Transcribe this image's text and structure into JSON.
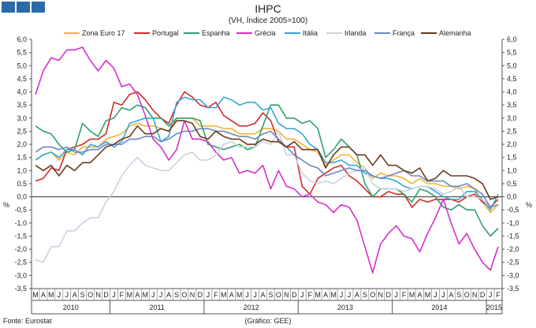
{
  "chart_data": {
    "type": "line",
    "title": "IHPC",
    "subtitle": "(VH, Índice 2005=100)",
    "ylabel_left": "%",
    "ylabel_right": "%",
    "ylim": [
      -3.5,
      6.0
    ],
    "yticks": [
      "6,0",
      "5,5",
      "5,0",
      "4,5",
      "4,0",
      "3,5",
      "3,0",
      "2,5",
      "2,0",
      "1,5",
      "1,0",
      "0,5",
      "0,0",
      "-0,5",
      "-1,0",
      "-1,5",
      "-2,0",
      "-2,5",
      "-3,0",
      "-3,5"
    ],
    "grid": false,
    "legend_position": "top",
    "months": [
      "M",
      "A",
      "M",
      "J",
      "J",
      "A",
      "S",
      "O",
      "N",
      "D",
      "J",
      "F",
      "M",
      "A",
      "M",
      "J",
      "J",
      "A",
      "S",
      "O",
      "N",
      "D",
      "J",
      "F",
      "M",
      "A",
      "M",
      "J",
      "J",
      "A",
      "S",
      "O",
      "N",
      "D",
      "J",
      "F",
      "M",
      "A",
      "M",
      "J",
      "J",
      "A",
      "S",
      "O",
      "N",
      "D",
      "J",
      "F",
      "M",
      "A",
      "M",
      "J",
      "J",
      "A",
      "S",
      "O",
      "N",
      "D",
      "J",
      "F"
    ],
    "years": [
      {
        "label": "2010",
        "start": 0,
        "end": 10
      },
      {
        "label": "2011",
        "start": 10,
        "end": 22
      },
      {
        "label": "2012",
        "start": 22,
        "end": 34
      },
      {
        "label": "2013",
        "start": 34,
        "end": 46
      },
      {
        "label": "2014",
        "start": 46,
        "end": 58
      },
      {
        "label": "2015",
        "start": 58,
        "end": 60
      }
    ],
    "series": [
      {
        "name": "Zona Euro 17",
        "color": "#f5b335",
        "values": [
          1.4,
          1.6,
          1.7,
          1.4,
          1.7,
          1.6,
          1.9,
          1.9,
          1.9,
          2.2,
          2.3,
          2.4,
          2.7,
          2.8,
          2.7,
          2.7,
          2.6,
          2.5,
          3.0,
          3.0,
          3.0,
          2.7,
          2.7,
          2.7,
          2.6,
          2.6,
          2.4,
          2.4,
          2.4,
          2.6,
          2.6,
          2.5,
          2.2,
          2.2,
          2.0,
          1.8,
          1.7,
          1.2,
          1.4,
          1.6,
          1.6,
          1.3,
          1.1,
          0.7,
          0.9,
          0.8,
          0.8,
          0.7,
          0.5,
          0.7,
          0.5,
          0.5,
          0.4,
          0.4,
          0.3,
          0.4,
          0.3,
          -0.2,
          -0.6,
          -0.3
        ]
      },
      {
        "name": "Portugal",
        "color": "#d42a2a",
        "values": [
          0.6,
          0.7,
          1.1,
          1.0,
          1.8,
          1.9,
          2.0,
          2.2,
          2.2,
          2.4,
          3.6,
          3.5,
          3.9,
          4.0,
          3.7,
          3.3,
          3.0,
          2.8,
          3.5,
          4.0,
          3.8,
          3.5,
          3.4,
          3.6,
          3.1,
          2.9,
          2.7,
          2.7,
          2.8,
          3.2,
          2.9,
          2.1,
          1.9,
          1.9,
          0.4,
          0.1,
          0.7,
          0.9,
          1.1,
          1.2,
          0.8,
          0.6,
          0.3,
          0.0,
          0.0,
          0.2,
          0.1,
          0.1,
          -0.4,
          -0.1,
          -0.2,
          -0.1,
          -0.1,
          -0.1,
          -0.2,
          0.0,
          0.1,
          -0.2,
          -0.4,
          -0.1
        ]
      },
      {
        "name": "Espanha",
        "color": "#2ea06a",
        "values": [
          2.7,
          2.5,
          2.4,
          2.0,
          1.7,
          1.8,
          2.8,
          2.5,
          2.3,
          2.9,
          3.0,
          3.4,
          3.3,
          3.5,
          3.4,
          3.0,
          3.0,
          2.7,
          3.0,
          3.0,
          3.0,
          2.9,
          2.0,
          1.9,
          1.8,
          1.9,
          2.0,
          1.8,
          1.9,
          2.7,
          3.5,
          3.5,
          3.0,
          3.0,
          2.8,
          2.9,
          2.6,
          1.5,
          1.8,
          2.2,
          1.9,
          1.6,
          0.5,
          0.0,
          0.3,
          0.3,
          0.3,
          0.1,
          -0.2,
          0.3,
          0.2,
          0.0,
          -0.4,
          -0.5,
          -0.3,
          -0.5,
          -0.5,
          -1.1,
          -1.5,
          -1.2
        ]
      },
      {
        "name": "Grécia",
        "color": "#d62ecc",
        "values": [
          3.9,
          4.8,
          5.3,
          5.2,
          5.6,
          5.6,
          5.7,
          5.2,
          4.8,
          5.2,
          4.9,
          4.2,
          4.3,
          3.9,
          3.1,
          2.2,
          1.9,
          1.4,
          1.8,
          2.9,
          2.2,
          2.2,
          2.1,
          1.7,
          1.4,
          1.5,
          0.9,
          1.0,
          0.9,
          1.2,
          0.3,
          1.0,
          0.4,
          0.3,
          0.0,
          0.1,
          -0.2,
          -0.3,
          -0.6,
          -0.3,
          -0.4,
          -0.9,
          -1.9,
          -2.9,
          -1.8,
          -1.4,
          -1.1,
          -1.5,
          -1.6,
          -2.1,
          -1.4,
          -0.8,
          -0.1,
          -1.0,
          -1.8,
          -1.4,
          -2.0,
          -2.5,
          -2.8,
          -1.9
        ]
      },
      {
        "name": "Itália",
        "color": "#35a5d8",
        "values": [
          1.4,
          1.6,
          1.7,
          1.5,
          1.8,
          1.8,
          1.6,
          2.0,
          1.9,
          2.1,
          1.9,
          2.1,
          2.8,
          2.9,
          3.0,
          3.0,
          2.1,
          2.3,
          3.6,
          3.8,
          3.7,
          3.7,
          3.4,
          3.4,
          3.8,
          3.7,
          3.5,
          3.6,
          3.6,
          3.3,
          3.4,
          2.8,
          2.6,
          2.6,
          2.4,
          2.0,
          1.8,
          1.3,
          1.3,
          1.4,
          1.2,
          1.2,
          0.9,
          0.8,
          0.7,
          0.7,
          0.6,
          0.4,
          0.3,
          0.4,
          0.4,
          0.2,
          0.0,
          -0.1,
          -0.1,
          0.2,
          0.2,
          -0.1,
          -0.5,
          0.1
        ]
      },
      {
        "name": "Irlanda",
        "color": "#c8d2de",
        "values": [
          -2.4,
          -2.5,
          -1.9,
          -1.9,
          -1.3,
          -1.3,
          -1.0,
          -0.8,
          -0.8,
          -0.2,
          0.2,
          0.8,
          1.2,
          1.5,
          1.2,
          1.1,
          1.0,
          1.0,
          1.3,
          1.6,
          1.7,
          1.4,
          1.4,
          1.6,
          2.0,
          2.1,
          1.9,
          1.9,
          1.9,
          2.1,
          2.0,
          2.5,
          1.6,
          1.6,
          0.9,
          0.6,
          0.5,
          0.6,
          0.5,
          0.7,
          0.9,
          1.0,
          1.1,
          0.5,
          0.3,
          0.3,
          0.3,
          0.2,
          0.3,
          0.4,
          0.4,
          0.3,
          0.1,
          0.2,
          0.4,
          0.0,
          0.0,
          -0.1,
          -0.4,
          -0.3
        ]
      },
      {
        "name": "França",
        "color": "#6d86c6",
        "values": [
          1.7,
          1.9,
          1.9,
          1.8,
          1.9,
          1.7,
          1.7,
          1.8,
          1.8,
          2.0,
          2.0,
          2.0,
          2.2,
          2.2,
          2.3,
          2.3,
          2.1,
          2.2,
          2.4,
          2.5,
          2.5,
          2.6,
          2.6,
          2.5,
          2.5,
          2.4,
          2.3,
          2.3,
          2.2,
          2.4,
          2.5,
          2.2,
          1.9,
          1.6,
          1.4,
          1.2,
          1.1,
          0.8,
          0.9,
          1.0,
          1.1,
          1.0,
          1.0,
          0.8,
          0.7,
          0.8,
          0.9,
          1.0,
          0.8,
          0.8,
          0.6,
          0.6,
          0.6,
          0.4,
          0.4,
          0.5,
          0.3,
          0.1,
          -0.4,
          -0.3
        ]
      },
      {
        "name": "Alemanha",
        "color": "#6b3a18",
        "values": [
          1.2,
          1.0,
          1.2,
          0.8,
          1.2,
          1.0,
          1.3,
          1.3,
          1.6,
          1.9,
          2.0,
          2.2,
          2.3,
          2.7,
          2.4,
          2.4,
          2.6,
          2.5,
          2.9,
          2.9,
          2.8,
          2.3,
          2.2,
          2.5,
          2.3,
          2.2,
          2.2,
          2.0,
          2.0,
          2.2,
          2.1,
          2.1,
          1.9,
          2.1,
          1.8,
          1.8,
          1.8,
          1.1,
          1.6,
          1.9,
          1.9,
          1.6,
          1.6,
          1.2,
          1.6,
          1.2,
          1.2,
          1.0,
          0.9,
          1.1,
          0.6,
          0.7,
          1.0,
          0.8,
          0.8,
          0.8,
          0.7,
          0.5,
          -0.1,
          0.0
        ]
      }
    ],
    "footer_left": "Fonte: Eurostat",
    "footer_center": "(Gráfico: GEE)"
  }
}
